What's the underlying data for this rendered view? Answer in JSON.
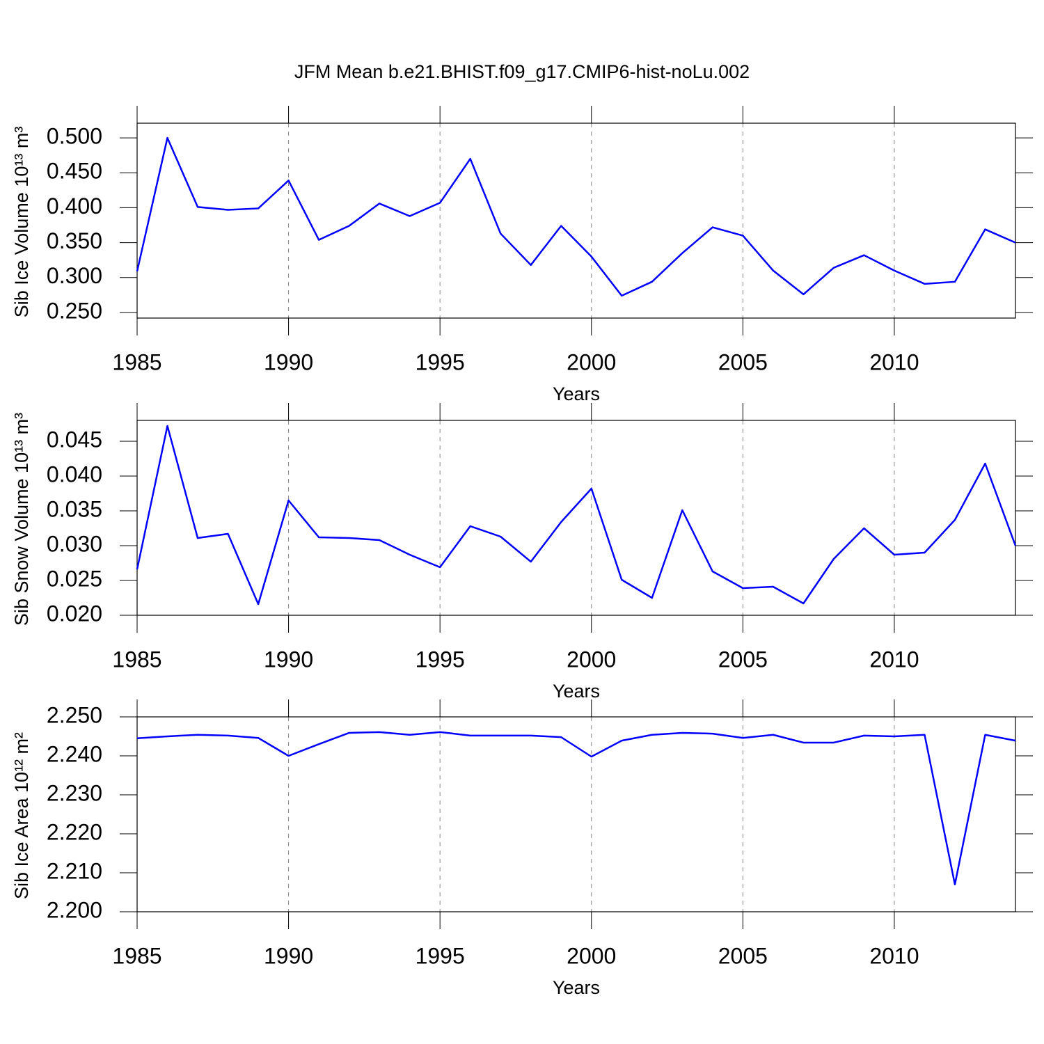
{
  "chart_data": [
    {
      "type": "line",
      "title": "JFM Mean b.e21.BHIST.f09_g17.CMIP6-hist-noLu.002",
      "xlabel": "Years",
      "ylabel": "Sib Ice Volume 10¹³ m³",
      "x": [
        1985,
        1986,
        1987,
        1988,
        1989,
        1990,
        1991,
        1992,
        1993,
        1994,
        1995,
        1996,
        1997,
        1998,
        1999,
        2000,
        2001,
        2002,
        2003,
        2004,
        2005,
        2006,
        2007,
        2008,
        2009,
        2010,
        2011,
        2012,
        2013,
        2014
      ],
      "series": [
        {
          "color": "#0000ff",
          "values": [
            0.309,
            0.5,
            0.401,
            0.397,
            0.399,
            0.439,
            0.354,
            0.374,
            0.406,
            0.388,
            0.407,
            0.47,
            0.363,
            0.318,
            0.374,
            0.33,
            0.274,
            0.294,
            0.335,
            0.372,
            0.36,
            0.31,
            0.276,
            0.314,
            0.332,
            0.31,
            0.291,
            0.294,
            0.369,
            0.35
          ]
        }
      ],
      "xlim": [
        1985,
        2014
      ],
      "xticks": [
        1985,
        1990,
        1995,
        2000,
        2005,
        2010
      ],
      "ylim": [
        0.242,
        0.521
      ],
      "yticks": [
        {
          "value": 0.25,
          "label": "0.250"
        },
        {
          "value": 0.3,
          "label": "0.300"
        },
        {
          "value": 0.35,
          "label": "0.350"
        },
        {
          "value": 0.4,
          "label": "0.400"
        },
        {
          "value": 0.45,
          "label": "0.450"
        },
        {
          "value": 0.5,
          "label": "0.500"
        }
      ],
      "grid": "x"
    },
    {
      "type": "line",
      "xlabel": "Years",
      "ylabel": "Sib Snow Volume 10¹³ m³",
      "x": [
        1985,
        1986,
        1987,
        1988,
        1989,
        1990,
        1991,
        1992,
        1993,
        1994,
        1995,
        1996,
        1997,
        1998,
        1999,
        2000,
        2001,
        2002,
        2003,
        2004,
        2005,
        2006,
        2007,
        2008,
        2009,
        2010,
        2011,
        2012,
        2013,
        2014
      ],
      "series": [
        {
          "color": "#0000ff",
          "values": [
            0.0266,
            0.0472,
            0.0311,
            0.0317,
            0.0216,
            0.0365,
            0.0312,
            0.0311,
            0.0308,
            0.0287,
            0.0269,
            0.0328,
            0.0313,
            0.0277,
            0.0334,
            0.0382,
            0.0251,
            0.0225,
            0.0351,
            0.0263,
            0.0239,
            0.0241,
            0.0217,
            0.0281,
            0.0325,
            0.0287,
            0.029,
            0.0337,
            0.0418,
            0.03
          ]
        }
      ],
      "xlim": [
        1985,
        2014
      ],
      "xticks": [
        1985,
        1990,
        1995,
        2000,
        2005,
        2010
      ],
      "ylim": [
        0.02,
        0.048
      ],
      "yticks": [
        {
          "value": 0.02,
          "label": "0.020"
        },
        {
          "value": 0.025,
          "label": "0.025"
        },
        {
          "value": 0.03,
          "label": "0.030"
        },
        {
          "value": 0.035,
          "label": "0.035"
        },
        {
          "value": 0.04,
          "label": "0.040"
        },
        {
          "value": 0.045,
          "label": "0.045"
        }
      ],
      "grid": "x"
    },
    {
      "type": "line",
      "xlabel": "Years",
      "ylabel": "Sib Ice Area 10¹² m²",
      "x": [
        1985,
        1986,
        1987,
        1988,
        1989,
        1990,
        1991,
        1992,
        1993,
        1994,
        1995,
        1996,
        1997,
        1998,
        1999,
        2000,
        2001,
        2002,
        2003,
        2004,
        2005,
        2006,
        2007,
        2008,
        2009,
        2010,
        2011,
        2012,
        2013,
        2014
      ],
      "series": [
        {
          "color": "#0000ff",
          "values": [
            2.2445,
            2.245,
            2.2454,
            2.2452,
            2.2446,
            2.24,
            2.243,
            2.2459,
            2.2461,
            2.2454,
            2.2461,
            2.2452,
            2.2452,
            2.2452,
            2.2448,
            2.2398,
            2.2439,
            2.2454,
            2.2459,
            2.2457,
            2.2446,
            2.2454,
            2.2434,
            2.2434,
            2.2452,
            2.245,
            2.2454,
            2.207,
            2.2454,
            2.2439
          ]
        }
      ],
      "xlim": [
        1985,
        2014
      ],
      "xticks": [
        1985,
        1990,
        1995,
        2000,
        2005,
        2010
      ],
      "ylim": [
        2.2,
        2.25
      ],
      "yticks": [
        {
          "value": 2.2,
          "label": "2.200"
        },
        {
          "value": 2.21,
          "label": "2.210"
        },
        {
          "value": 2.22,
          "label": "2.220"
        },
        {
          "value": 2.23,
          "label": "2.230"
        },
        {
          "value": 2.24,
          "label": "2.240"
        },
        {
          "value": 2.25,
          "label": "2.250"
        }
      ],
      "grid": "x"
    }
  ]
}
